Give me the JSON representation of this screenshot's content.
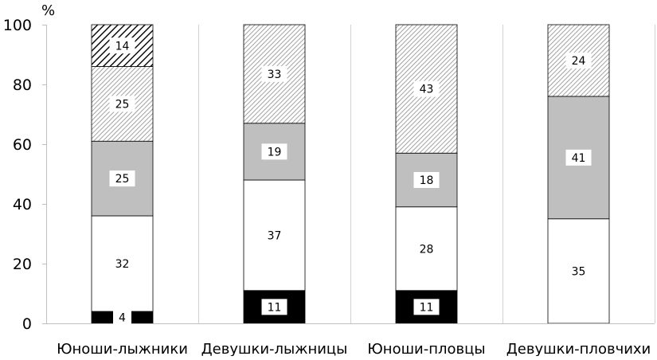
{
  "chart_data": {
    "type": "bar",
    "stacked": true,
    "unit_label": "%",
    "categories": [
      "Юноши-лыжники",
      "Девушки-лыжницы",
      "Юноши-пловцы",
      "Девушки-пловчихи"
    ],
    "series": [
      {
        "values": [
          4,
          11,
          11,
          0
        ],
        "fill": "solid",
        "color": "#000000"
      },
      {
        "values": [
          32,
          37,
          28,
          35
        ],
        "fill": "solid",
        "color": "#ffffff"
      },
      {
        "values": [
          25,
          19,
          18,
          41
        ],
        "fill": "solid",
        "color": "#bfbfbf"
      },
      {
        "values": [
          25,
          33,
          43,
          24
        ],
        "fill": "light-diagonal-hatch",
        "color": "#808080"
      },
      {
        "values": [
          14,
          0,
          0,
          0
        ],
        "fill": "dark-diagonal-hatch",
        "color": "#000000"
      }
    ],
    "ylim": [
      0,
      100
    ],
    "yticks": [
      "0",
      "20",
      "40",
      "60",
      "80",
      "100"
    ],
    "grid": "vertical-separators",
    "legend": "none"
  }
}
